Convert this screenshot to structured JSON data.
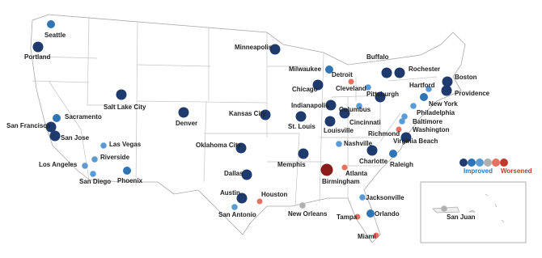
{
  "map": {
    "cities": [
      {
        "name": "Seattle",
        "color": "#2f75b5"
      },
      {
        "name": "Portland",
        "color": "#1f3b6e"
      },
      {
        "name": "San Francisco",
        "color": "#1f3b6e"
      },
      {
        "name": "Sacramento",
        "color": "#2f75b5"
      },
      {
        "name": "San Jose",
        "color": "#1f3b6e"
      },
      {
        "name": "Las Vegas",
        "color": "#5b9bd5"
      },
      {
        "name": "Riverside",
        "color": "#5b9bd5"
      },
      {
        "name": "Los Angeles",
        "color": "#5b9bd5"
      },
      {
        "name": "San Diego",
        "color": "#5b9bd5"
      },
      {
        "name": "Phoenix",
        "color": "#2f75b5"
      },
      {
        "name": "Salt Lake City",
        "color": "#1f3b6e"
      },
      {
        "name": "Denver",
        "color": "#1f3b6e"
      },
      {
        "name": "Minneapolis",
        "color": "#1f3b6e"
      },
      {
        "name": "Kansas City",
        "color": "#1f3b6e"
      },
      {
        "name": "Oklahoma City",
        "color": "#1f3b6e"
      },
      {
        "name": "Dallas",
        "color": "#1f3b6e"
      },
      {
        "name": "Austin",
        "color": "#1f3b6e"
      },
      {
        "name": "San Antonio",
        "color": "#5b9bd5"
      },
      {
        "name": "Houston",
        "color": "#e8705e"
      },
      {
        "name": "Milwaukee",
        "color": "#2f75b5"
      },
      {
        "name": "Chicago",
        "color": "#1f3b6e"
      },
      {
        "name": "Detroit",
        "color": "#e8705e"
      },
      {
        "name": "Indianapolis",
        "color": "#1f3b6e"
      },
      {
        "name": "St. Louis",
        "color": "#1f3b6e"
      },
      {
        "name": "Cincinnati",
        "color": "#1f3b6e"
      },
      {
        "name": "Columbus",
        "color": "#5b9bd5"
      },
      {
        "name": "Louisville",
        "color": "#1f3b6e"
      },
      {
        "name": "Nashville",
        "color": "#5b9bd5"
      },
      {
        "name": "Memphis",
        "color": "#1f3b6e"
      },
      {
        "name": "Birmingham",
        "color": "#8b1a1a"
      },
      {
        "name": "Atlanta",
        "color": "#e8705e"
      },
      {
        "name": "New Orleans",
        "color": "#b0b0b0"
      },
      {
        "name": "Jacksonville",
        "color": "#5b9bd5"
      },
      {
        "name": "Orlando",
        "color": "#2f75b5"
      },
      {
        "name": "Tampa",
        "color": "#e8705e"
      },
      {
        "name": "Miami",
        "color": "#e8705e"
      },
      {
        "name": "Charlotte",
        "color": "#1f3b6e"
      },
      {
        "name": "Raleigh",
        "color": "#2f75b5"
      },
      {
        "name": "Virginia Beach",
        "color": "#1f3b6e"
      },
      {
        "name": "Richmond",
        "color": "#e8705e"
      },
      {
        "name": "Washington",
        "color": "#5b9bd5"
      },
      {
        "name": "Baltimore",
        "color": "#5b9bd5"
      },
      {
        "name": "Philadelphia",
        "color": "#5b9bd5"
      },
      {
        "name": "New York",
        "color": "#2f75b5"
      },
      {
        "name": "Hartford",
        "color": "#5b9bd5"
      },
      {
        "name": "Providence",
        "color": "#1f3b6e"
      },
      {
        "name": "Boston",
        "color": "#1f3b6e"
      },
      {
        "name": "Buffalo",
        "color": "#1f3b6e"
      },
      {
        "name": "Rochester",
        "color": "#1f3b6e"
      },
      {
        "name": "Pittsburgh",
        "color": "#1f3b6e"
      },
      {
        "name": "Cleveland",
        "color": "#5b9bd5"
      },
      {
        "name": "San Juan",
        "color": "#b0b0b0"
      }
    ],
    "legend": {
      "colors": [
        "#1f3b6e",
        "#2f75b5",
        "#5b9bd5",
        "#b0b0b0",
        "#e8705e",
        "#c0392b"
      ],
      "improved": "Improved",
      "worsened": "Worsened"
    }
  }
}
